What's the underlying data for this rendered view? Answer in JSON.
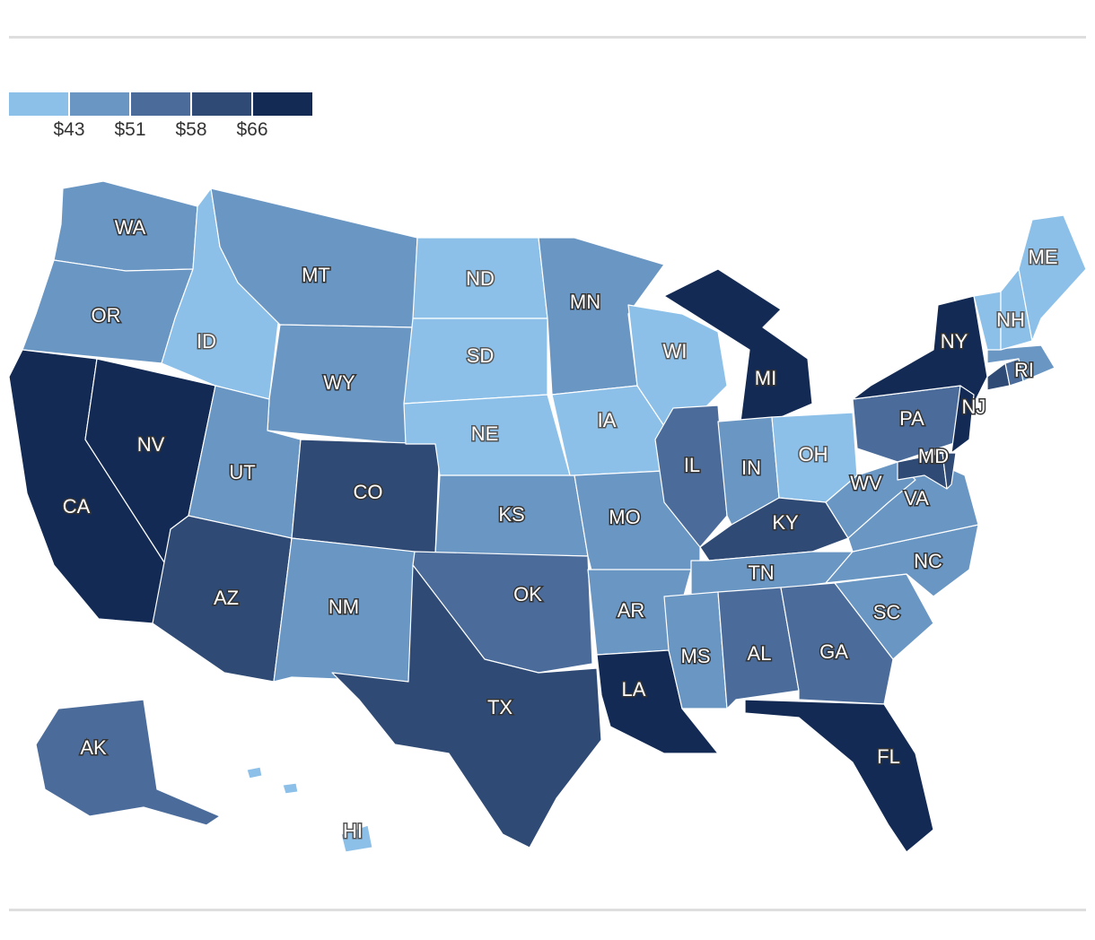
{
  "legend": {
    "ticks": [
      "$43",
      "$51",
      "$58",
      "$66"
    ],
    "colors": [
      "#8cc0e8",
      "#6a96c3",
      "#4b6c9a",
      "#2f4a74",
      "#132a54"
    ]
  },
  "states": [
    {
      "abbr": "WA",
      "bin": 1
    },
    {
      "abbr": "OR",
      "bin": 1
    },
    {
      "abbr": "CA",
      "bin": 4
    },
    {
      "abbr": "NV",
      "bin": 4
    },
    {
      "abbr": "ID",
      "bin": 0
    },
    {
      "abbr": "MT",
      "bin": 1
    },
    {
      "abbr": "WY",
      "bin": 1
    },
    {
      "abbr": "UT",
      "bin": 1
    },
    {
      "abbr": "AZ",
      "bin": 3
    },
    {
      "abbr": "CO",
      "bin": 3
    },
    {
      "abbr": "NM",
      "bin": 1
    },
    {
      "abbr": "ND",
      "bin": 0
    },
    {
      "abbr": "SD",
      "bin": 0
    },
    {
      "abbr": "NE",
      "bin": 0
    },
    {
      "abbr": "KS",
      "bin": 1
    },
    {
      "abbr": "OK",
      "bin": 2
    },
    {
      "abbr": "TX",
      "bin": 3
    },
    {
      "abbr": "MN",
      "bin": 1
    },
    {
      "abbr": "IA",
      "bin": 0
    },
    {
      "abbr": "MO",
      "bin": 1
    },
    {
      "abbr": "AR",
      "bin": 1
    },
    {
      "abbr": "LA",
      "bin": 4
    },
    {
      "abbr": "WI",
      "bin": 0
    },
    {
      "abbr": "IL",
      "bin": 2
    },
    {
      "abbr": "MI",
      "bin": 4
    },
    {
      "abbr": "IN",
      "bin": 1
    },
    {
      "abbr": "OH",
      "bin": 0
    },
    {
      "abbr": "KY",
      "bin": 3
    },
    {
      "abbr": "TN",
      "bin": 1
    },
    {
      "abbr": "MS",
      "bin": 1
    },
    {
      "abbr": "AL",
      "bin": 2
    },
    {
      "abbr": "GA",
      "bin": 2
    },
    {
      "abbr": "FL",
      "bin": 4
    },
    {
      "abbr": "SC",
      "bin": 1
    },
    {
      "abbr": "NC",
      "bin": 1
    },
    {
      "abbr": "VA",
      "bin": 1
    },
    {
      "abbr": "WV",
      "bin": 1
    },
    {
      "abbr": "PA",
      "bin": 2
    },
    {
      "abbr": "NY",
      "bin": 4
    },
    {
      "abbr": "NJ",
      "bin": 4
    },
    {
      "abbr": "MD",
      "bin": 3
    },
    {
      "abbr": "DE",
      "bin": 3
    },
    {
      "abbr": "CT",
      "bin": 3
    },
    {
      "abbr": "RI",
      "bin": 2
    },
    {
      "abbr": "MA",
      "bin": 1
    },
    {
      "abbr": "VT",
      "bin": 0
    },
    {
      "abbr": "NH",
      "bin": 0
    },
    {
      "abbr": "ME",
      "bin": 0
    },
    {
      "abbr": "AK",
      "bin": 2
    },
    {
      "abbr": "HI",
      "bin": 0
    }
  ],
  "labeled": [
    "WA",
    "OR",
    "CA",
    "NV",
    "ID",
    "MT",
    "WY",
    "UT",
    "AZ",
    "CO",
    "NM",
    "ND",
    "SD",
    "NE",
    "KS",
    "OK",
    "TX",
    "MN",
    "IA",
    "MO",
    "AR",
    "LA",
    "WI",
    "IL",
    "MI",
    "IN",
    "OH",
    "KY",
    "TN",
    "MS",
    "AL",
    "GA",
    "FL",
    "SC",
    "NC",
    "VA",
    "WV",
    "PA",
    "NY",
    "NJ",
    "MD",
    "RI",
    "NH",
    "ME",
    "AK",
    "HI"
  ]
}
